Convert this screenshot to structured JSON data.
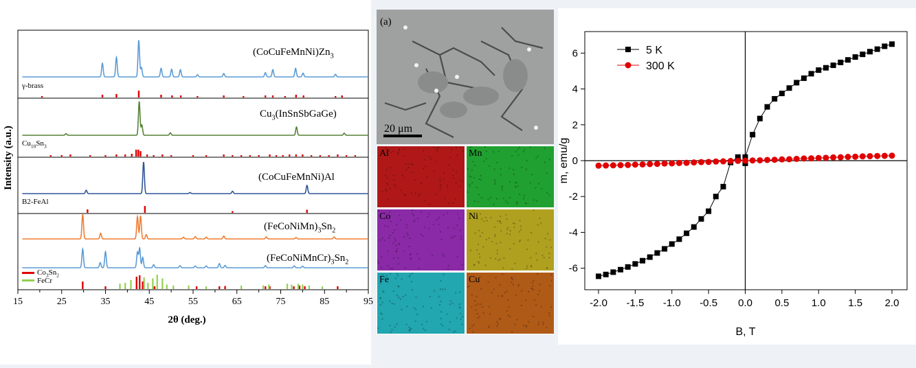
{
  "colors": {
    "panel_bg": "#ffffff",
    "page_bg": "#eef1f6",
    "blue": "#5b9bd5",
    "green": "#548235",
    "darkblue": "#2f5597",
    "orange": "#ed7d31",
    "ref_red": "#e00000",
    "ref_green": "#92d050",
    "m_black": "#000000",
    "m_red": "#e00000"
  },
  "xrd": {
    "xlabel": "2θ (deg.)",
    "ylabel": "Intensity (a.u.)",
    "xlim": [
      15,
      95
    ],
    "xticks": [
      15,
      25,
      35,
      45,
      55,
      65,
      75,
      85,
      95
    ],
    "xticks_minor": [
      20,
      30,
      40,
      50,
      60,
      70,
      80,
      90
    ],
    "panels": [
      {
        "label": "(CoCuFeMnNi)Zn",
        "label_sub": "3",
        "ref_label": "γ-brass",
        "ref_sub": "",
        "color": "blue",
        "peaks": [
          [
            34.3,
            0.32
          ],
          [
            37.5,
            0.46
          ],
          [
            42.6,
            0.86
          ],
          [
            43.2,
            0.22
          ],
          [
            47.7,
            0.2
          ],
          [
            50.1,
            0.18
          ],
          [
            52.1,
            0.17
          ],
          [
            56.0,
            0.05
          ],
          [
            62.0,
            0.08
          ],
          [
            71.5,
            0.1
          ],
          [
            73.2,
            0.17
          ],
          [
            78.4,
            0.2
          ],
          [
            80.1,
            0.09
          ],
          [
            87.5,
            0.06
          ]
        ],
        "ref_lines": [
          [
            20.5,
            0.2
          ],
          [
            34.3,
            0.4
          ],
          [
            37.5,
            0.5
          ],
          [
            42.6,
            1.0
          ],
          [
            47.7,
            0.4
          ],
          [
            50.2,
            0.3
          ],
          [
            52.2,
            0.3
          ],
          [
            56.0,
            0.2
          ],
          [
            62.0,
            0.3
          ],
          [
            66.5,
            0.2
          ],
          [
            71.5,
            0.3
          ],
          [
            73.2,
            0.3
          ],
          [
            76.0,
            0.2
          ],
          [
            78.5,
            0.4
          ],
          [
            80.2,
            0.3
          ],
          [
            87.5,
            0.2
          ],
          [
            89.0,
            0.3
          ]
        ]
      },
      {
        "label": "Cu",
        "label_sub": "3",
        "label_rest": "(InSnSbGaGe)",
        "ref_label": "Cu",
        "ref_sub": "10",
        "ref_rest": "Sn",
        "ref_sub2": "3",
        "color": "green",
        "peaks": [
          [
            26.0,
            0.04
          ],
          [
            42.7,
            0.82
          ],
          [
            43.3,
            0.25
          ],
          [
            49.8,
            0.06
          ],
          [
            78.6,
            0.2
          ],
          [
            89.5,
            0.05
          ]
        ],
        "ref_lines": [
          [
            22.5,
            0.2
          ],
          [
            25.0,
            0.2
          ],
          [
            27.0,
            0.3
          ],
          [
            31.5,
            0.2
          ],
          [
            35.0,
            0.2
          ],
          [
            37.5,
            0.3
          ],
          [
            39.5,
            0.3
          ],
          [
            41.0,
            0.4
          ],
          [
            42.0,
            1.0
          ],
          [
            42.5,
            1.0
          ],
          [
            43.0,
            0.8
          ],
          [
            44.5,
            0.3
          ],
          [
            46.0,
            0.2
          ],
          [
            48.0,
            0.3
          ],
          [
            50.0,
            0.2
          ],
          [
            55.0,
            0.2
          ],
          [
            58.0,
            0.2
          ],
          [
            62.0,
            0.3
          ],
          [
            64.0,
            0.2
          ],
          [
            66.0,
            0.2
          ],
          [
            68.0,
            0.2
          ],
          [
            70.0,
            0.2
          ],
          [
            72.5,
            0.3
          ],
          [
            74.0,
            0.2
          ],
          [
            75.5,
            0.2
          ],
          [
            77.0,
            0.3
          ],
          [
            78.5,
            0.3
          ],
          [
            80.0,
            0.3
          ],
          [
            82.0,
            0.2
          ],
          [
            84.0,
            0.2
          ],
          [
            86.0,
            0.2
          ],
          [
            88.0,
            0.3
          ],
          [
            90.0,
            0.2
          ],
          [
            92.0,
            0.2
          ]
        ]
      },
      {
        "label": "(CoCuFeMnNi)Al",
        "label_sub": "",
        "ref_label": "B2-FeAl",
        "ref_sub": "",
        "color": "darkblue",
        "peaks": [
          [
            30.6,
            0.1
          ],
          [
            43.7,
            0.92
          ],
          [
            54.3,
            0.03
          ],
          [
            64.0,
            0.07
          ],
          [
            81.0,
            0.24
          ]
        ],
        "ref_lines": [
          [
            30.9,
            0.5
          ],
          [
            44.0,
            1.0
          ],
          [
            64.0,
            0.25
          ],
          [
            81.0,
            0.45
          ]
        ]
      },
      {
        "label": "(FeCoNiMn)",
        "label_sub": "3",
        "label_rest": "Sn",
        "label_sub2": "2",
        "ref_label": "",
        "ref_sub": "",
        "color": "orange",
        "peaks": [
          [
            29.8,
            0.85
          ],
          [
            33.9,
            0.2
          ],
          [
            42.3,
            0.78
          ],
          [
            43.0,
            0.8
          ],
          [
            44.3,
            0.15
          ],
          [
            52.8,
            0.06
          ],
          [
            55.5,
            0.08
          ],
          [
            58.0,
            0.06
          ],
          [
            62.0,
            0.1
          ],
          [
            71.7,
            0.07
          ],
          [
            78.5,
            0.05
          ],
          [
            87.2,
            0.07
          ]
        ],
        "ref_lines": []
      },
      {
        "label": "(FeCoNiMnCr)",
        "label_sub": "3",
        "label_rest": "Sn",
        "label_sub2": "2",
        "ref_label": "Co",
        "ref_sub": "3",
        "ref_rest": "Sn",
        "ref_sub2": "2",
        "ref_label2": "FeCr",
        "color": "blue",
        "peaks": [
          [
            29.8,
            0.72
          ],
          [
            33.8,
            0.2
          ],
          [
            35.0,
            0.62
          ],
          [
            42.3,
            0.6
          ],
          [
            42.8,
            0.75
          ],
          [
            43.5,
            0.4
          ],
          [
            46.0,
            0.12
          ],
          [
            52.0,
            0.08
          ],
          [
            55.5,
            0.07
          ],
          [
            58.0,
            0.07
          ],
          [
            61.0,
            0.16
          ],
          [
            62.3,
            0.09
          ],
          [
            71.5,
            0.08
          ],
          [
            78.1,
            0.07
          ],
          [
            80.0,
            0.06
          ]
        ],
        "ref_lines": [
          [
            29.8,
            0.55
          ],
          [
            35.0,
            0.2
          ],
          [
            42.1,
            0.9
          ],
          [
            42.8,
            1.0
          ],
          [
            43.5,
            0.55
          ],
          [
            46.2,
            0.2
          ],
          [
            55.8,
            0.2
          ],
          [
            61.0,
            0.2
          ],
          [
            62.3,
            0.22
          ],
          [
            71.5,
            0.2
          ],
          [
            72.5,
            0.2
          ],
          [
            78.0,
            0.2
          ],
          [
            79.3,
            0.25
          ],
          [
            80.5,
            0.2
          ],
          [
            88.0,
            0.2
          ]
        ],
        "ref_lines2": [
          [
            38.3,
            0.3
          ],
          [
            39.5,
            0.35
          ],
          [
            40.8,
            0.5
          ],
          [
            43.8,
            0.65
          ],
          [
            44.7,
            0.35
          ],
          [
            45.8,
            0.6
          ],
          [
            46.8,
            0.8
          ],
          [
            48.0,
            0.6
          ],
          [
            49.0,
            0.25
          ],
          [
            50.5,
            0.2
          ],
          [
            54.0,
            0.2
          ],
          [
            58.0,
            0.15
          ],
          [
            66.0,
            0.2
          ],
          [
            71.0,
            0.2
          ],
          [
            72.3,
            0.25
          ],
          [
            76.5,
            0.3
          ],
          [
            77.5,
            0.25
          ],
          [
            79.0,
            0.3
          ],
          [
            80.0,
            0.25
          ],
          [
            81.5,
            0.2
          ],
          [
            84.5,
            0.15
          ]
        ]
      }
    ]
  },
  "sem": {
    "panel_label": "(a)",
    "scale_label": "20 μm"
  },
  "eds": [
    {
      "label": "Al",
      "color": "#b01818"
    },
    {
      "label": "Mn",
      "color": "#20a030"
    },
    {
      "label": "Co",
      "color": "#8a2aa6"
    },
    {
      "label": "Ni",
      "color": "#b0a020"
    },
    {
      "label": "Fe",
      "color": "#22a6b0"
    },
    {
      "label": "Cu",
      "color": "#b05a18"
    }
  ],
  "chart_data": {
    "type": "scatter",
    "xlabel": "B, T",
    "ylabel": "m, emu/g",
    "xlim": [
      -2.0,
      2.0
    ],
    "ylim": [
      -7.2,
      7.2
    ],
    "xticks": [
      -2.0,
      -1.5,
      -1.0,
      -0.5,
      0.0,
      0.5,
      1.0,
      1.5,
      2.0
    ],
    "yticks": [
      -6,
      -4,
      -2,
      0,
      2,
      4,
      6
    ],
    "legend_position": "top-left",
    "series": [
      {
        "name": "5 K",
        "marker": "square",
        "color": "#000000",
        "x": [
          -2.0,
          -1.9,
          -1.8,
          -1.7,
          -1.6,
          -1.5,
          -1.4,
          -1.3,
          -1.2,
          -1.1,
          -1.0,
          -0.9,
          -0.8,
          -0.7,
          -0.6,
          -0.5,
          -0.4,
          -0.3,
          -0.2,
          -0.1,
          0.0,
          0.0,
          0.1,
          0.2,
          0.3,
          0.4,
          0.5,
          0.6,
          0.7,
          0.8,
          0.9,
          1.0,
          1.1,
          1.2,
          1.3,
          1.4,
          1.5,
          1.6,
          1.7,
          1.8,
          1.9,
          2.0
        ],
        "y": [
          -6.45,
          -6.35,
          -6.22,
          -6.08,
          -5.93,
          -5.76,
          -5.58,
          -5.38,
          -5.15,
          -4.92,
          -4.65,
          -4.38,
          -4.05,
          -3.7,
          -3.25,
          -2.82,
          -2.0,
          -1.45,
          -0.1,
          0.2,
          -0.15,
          0.2,
          1.45,
          2.35,
          3.0,
          3.45,
          3.75,
          4.05,
          4.35,
          4.6,
          4.85,
          5.05,
          5.18,
          5.32,
          5.48,
          5.62,
          5.78,
          5.93,
          6.08,
          6.22,
          6.38,
          6.5
        ]
      },
      {
        "name": "300 K",
        "marker": "circle",
        "color": "#e00000",
        "x": [
          -2.0,
          -1.9,
          -1.8,
          -1.7,
          -1.6,
          -1.5,
          -1.4,
          -1.3,
          -1.2,
          -1.1,
          -1.0,
          -0.9,
          -0.8,
          -0.7,
          -0.6,
          -0.5,
          -0.4,
          -0.3,
          -0.2,
          -0.1,
          0.0,
          0.1,
          0.2,
          0.3,
          0.4,
          0.5,
          0.6,
          0.7,
          0.8,
          0.9,
          1.0,
          1.1,
          1.2,
          1.3,
          1.4,
          1.5,
          1.6,
          1.7,
          1.8,
          1.9,
          2.0
        ],
        "y": [
          -0.28,
          -0.27,
          -0.26,
          -0.25,
          -0.24,
          -0.22,
          -0.21,
          -0.19,
          -0.18,
          -0.16,
          -0.15,
          -0.13,
          -0.12,
          -0.1,
          -0.08,
          -0.07,
          -0.05,
          -0.04,
          -0.02,
          -0.01,
          0.0,
          0.01,
          0.02,
          0.04,
          0.05,
          0.07,
          0.08,
          0.1,
          0.12,
          0.13,
          0.15,
          0.16,
          0.18,
          0.19,
          0.21,
          0.22,
          0.24,
          0.25,
          0.26,
          0.27,
          0.28
        ]
      }
    ]
  }
}
